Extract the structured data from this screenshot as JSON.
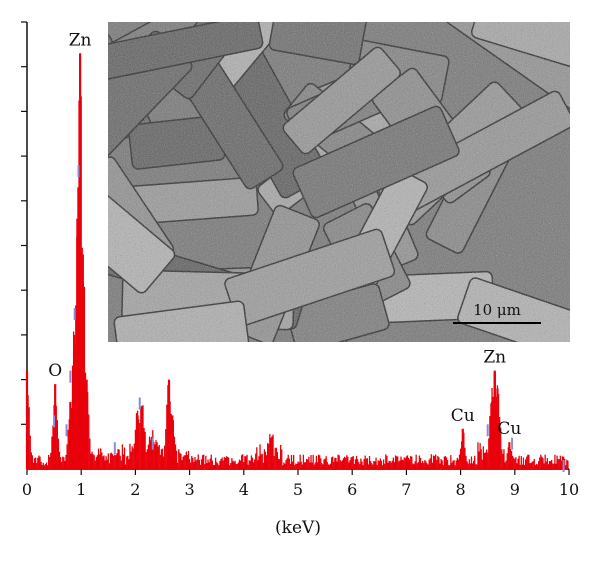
{
  "chart_data": {
    "type": "bar",
    "xlabel": "(keV)",
    "ylabel": "",
    "xlim": [
      0,
      10
    ],
    "x_ticks": [
      0,
      1,
      2,
      3,
      4,
      5,
      6,
      7,
      8,
      9,
      10
    ],
    "y_tick_count": 10,
    "y_axis_labels": false,
    "grid": false,
    "colors": {
      "spectrum": "#e8000b",
      "markers": "#8c8cd2",
      "axis": "#111111"
    },
    "peak_labels": [
      {
        "text": "O",
        "x": 0.52,
        "value": 0.19
      },
      {
        "text": "Zn",
        "x": 0.98,
        "value": 0.93
      },
      {
        "text": "Cu",
        "x": 8.04,
        "value": 0.09
      },
      {
        "text": "Zn",
        "x": 8.63,
        "value": 0.22
      },
      {
        "text": "Cu",
        "x": 8.9,
        "value": 0.06
      }
    ],
    "peaks": [
      {
        "x": 0.0,
        "value": 0.22
      },
      {
        "x": 0.52,
        "value": 0.19
      },
      {
        "x": 0.8,
        "value": 0.15
      },
      {
        "x": 0.87,
        "value": 0.3
      },
      {
        "x": 0.93,
        "value": 0.56
      },
      {
        "x": 0.98,
        "value": 0.93
      },
      {
        "x": 1.03,
        "value": 0.48
      },
      {
        "x": 1.1,
        "value": 0.2
      },
      {
        "x": 2.04,
        "value": 0.12
      },
      {
        "x": 2.12,
        "value": 0.14
      },
      {
        "x": 2.3,
        "value": 0.07
      },
      {
        "x": 2.4,
        "value": 0.05
      },
      {
        "x": 2.62,
        "value": 0.2
      },
      {
        "x": 2.68,
        "value": 0.12
      },
      {
        "x": 4.5,
        "value": 0.07
      },
      {
        "x": 8.04,
        "value": 0.09
      },
      {
        "x": 8.58,
        "value": 0.15
      },
      {
        "x": 8.63,
        "value": 0.22
      },
      {
        "x": 8.68,
        "value": 0.18
      },
      {
        "x": 8.9,
        "value": 0.06
      }
    ],
    "markers": [
      {
        "x": 0.5,
        "value": 0.12
      },
      {
        "x": 0.73,
        "value": 0.1
      },
      {
        "x": 0.8,
        "value": 0.22
      },
      {
        "x": 0.88,
        "value": 0.36
      },
      {
        "x": 0.95,
        "value": 0.68
      },
      {
        "x": 1.62,
        "value": 0.06
      },
      {
        "x": 2.08,
        "value": 0.16
      },
      {
        "x": 2.32,
        "value": 0.07
      },
      {
        "x": 8.5,
        "value": 0.1
      },
      {
        "x": 8.95,
        "value": 0.07
      },
      {
        "x": 9.9,
        "value": 0.02
      }
    ]
  },
  "inset": {
    "scale_bar_label": "10 μm"
  }
}
